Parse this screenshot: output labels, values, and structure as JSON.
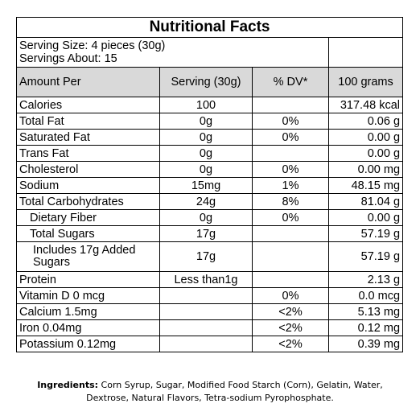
{
  "title": "Nutritional Facts",
  "serving_size": "Serving Size: 4 pieces (30g)",
  "servings_about": "Servings About: 15",
  "headers": {
    "amount_per": "Amount Per",
    "serving": "Serving (30g)",
    "dv": "% DV*",
    "per_100": "100 grams"
  },
  "rows": [
    {
      "name": "Calories",
      "serving": "100",
      "dv": "",
      "per100": "317.48 kcal"
    },
    {
      "name": "Total Fat",
      "serving": "0g",
      "dv": "0%",
      "per100": "0.06 g"
    },
    {
      "name": "Saturated Fat",
      "serving": "0g",
      "dv": "0%",
      "per100": "0.00 g"
    },
    {
      "name": "Trans Fat",
      "serving": "0g",
      "dv": "",
      "per100": "0.00 g"
    },
    {
      "name": "Cholesterol",
      "serving": "0g",
      "dv": "0%",
      "per100": "0.00 mg"
    },
    {
      "name": "Sodium",
      "serving": "15mg",
      "dv": "1%",
      "per100": "48.15 mg"
    },
    {
      "name": "Total Carbohydrates",
      "serving": "24g",
      "dv": "8%",
      "per100": "81.04 g"
    },
    {
      "name": "Dietary Fiber",
      "serving": "0g",
      "dv": "0%",
      "per100": "0.00 g"
    },
    {
      "name": "Total Sugars",
      "serving": "17g",
      "dv": "",
      "per100": "57.19 g"
    },
    {
      "name": "Includes 17g Added Sugars",
      "serving": "17g",
      "dv": "",
      "per100": "57.19 g"
    },
    {
      "name": "Protein",
      "serving": "Less than1g",
      "dv": "",
      "per100": "2.13 g"
    },
    {
      "name": "Vitamin D  0 mcg",
      "serving": "",
      "dv": "0%",
      "per100": "0.0 mcg"
    },
    {
      "name": "Calcium  1.5mg",
      "serving": "",
      "dv": "<2%",
      "per100": "5.13 mg"
    },
    {
      "name": "Iron  0.04mg",
      "serving": "",
      "dv": "<2%",
      "per100": "0.12 mg"
    },
    {
      "name": "Potassium  0.12mg",
      "serving": "",
      "dv": "<2%",
      "per100": "0.39 mg"
    }
  ],
  "ingredients_label": "Ingredients:",
  "ingredients_text": " Corn Syrup, Sugar, Modified Food Starch (Corn), Gelatin, Water, Dextrose, Natural Flavors, Tetra-sodium Pyrophosphate."
}
